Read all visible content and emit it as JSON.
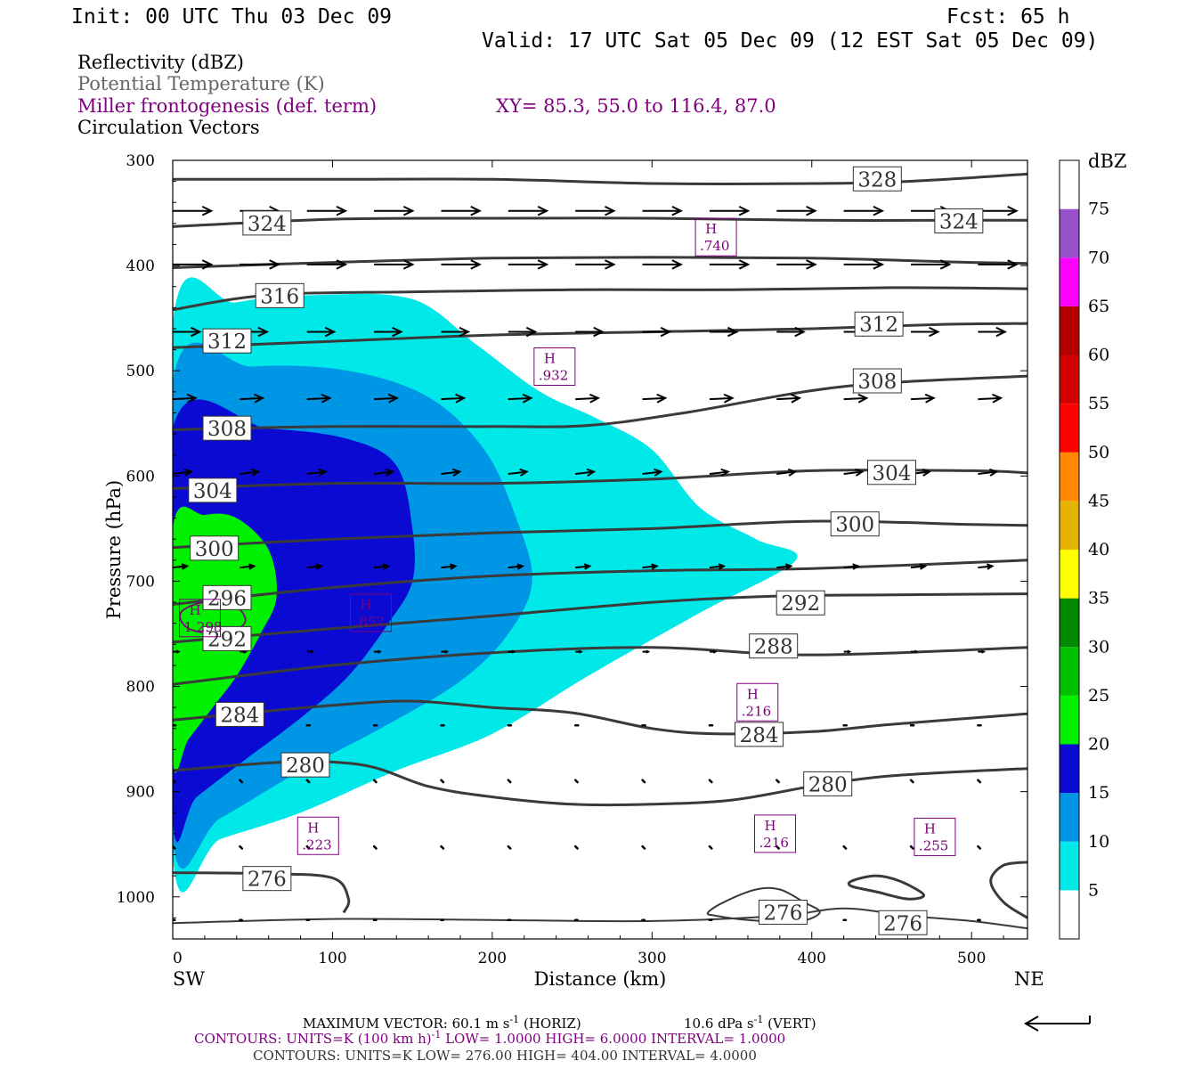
{
  "header": {
    "init": "Init: 00 UTC Thu 03 Dec 09",
    "fcst": "Fcst:   65 h",
    "valid": "Valid: 17 UTC Sat 05 Dec 09 (12 EST Sat 05 Dec 09)",
    "field1": "Reflectivity (dBZ)",
    "field2": "Potential Temperature (K)",
    "field3": "Miller frontogenesis (def. term)",
    "xy": "XY=  85.3, 55.0 to 116.4, 87.0",
    "field4": "Circulation Vectors"
  },
  "colors": {
    "field2": "#666666",
    "field3": "#800080",
    "theta": "#3a3a3a"
  },
  "chart_data": {
    "type": "cross-section",
    "xlabel": "Distance (km)",
    "ylabel": "Pressure (hPa)",
    "xlim": [
      0,
      535
    ],
    "ylim": [
      1040,
      300
    ],
    "x_ticks": [
      0,
      100,
      200,
      300,
      400,
      500
    ],
    "y_ticks": [
      300,
      400,
      500,
      600,
      700,
      800,
      900,
      1000
    ],
    "x_end_labels": {
      "left": "SW",
      "right": "NE"
    },
    "colorbar": {
      "unit": "dBZ",
      "levels": [
        5,
        10,
        15,
        20,
        25,
        30,
        35,
        40,
        45,
        50,
        55,
        60,
        65,
        70,
        75
      ],
      "colors": [
        "#ffffff",
        "#00e8e8",
        "#0096e6",
        "#0a0ad2",
        "#00f000",
        "#00c000",
        "#008800",
        "#ffff00",
        "#e6b400",
        "#ff8800",
        "#ff0000",
        "#d20000",
        "#b40000",
        "#ff00ff",
        "#9650c8",
        "#ffffff"
      ]
    },
    "reflectivity_polygons": [
      {
        "dbz": 5,
        "points": [
          [
            0,
            455
          ],
          [
            40,
            435
          ],
          [
            90,
            428
          ],
          [
            150,
            432
          ],
          [
            190,
            475
          ],
          [
            230,
            520
          ],
          [
            265,
            545
          ],
          [
            300,
            575
          ],
          [
            330,
            630
          ],
          [
            365,
            660
          ],
          [
            390,
            680
          ],
          [
            330,
            730
          ],
          [
            260,
            790
          ],
          [
            200,
            845
          ],
          [
            140,
            880
          ],
          [
            80,
            920
          ],
          [
            30,
            945
          ],
          [
            0,
            962
          ]
        ]
      },
      {
        "dbz": 10,
        "points": [
          [
            0,
            510
          ],
          [
            50,
            496
          ],
          [
            110,
            500
          ],
          [
            160,
            525
          ],
          [
            195,
            575
          ],
          [
            215,
            640
          ],
          [
            225,
            700
          ],
          [
            210,
            750
          ],
          [
            180,
            795
          ],
          [
            130,
            840
          ],
          [
            80,
            880
          ],
          [
            30,
            925
          ],
          [
            0,
            945
          ]
        ]
      },
      {
        "dbz": 15,
        "points": [
          [
            0,
            555
          ],
          [
            60,
            555
          ],
          [
            110,
            565
          ],
          [
            140,
            590
          ],
          [
            150,
            650
          ],
          [
            150,
            700
          ],
          [
            135,
            740
          ],
          [
            110,
            790
          ],
          [
            80,
            830
          ],
          [
            45,
            870
          ],
          [
            15,
            905
          ],
          [
            0,
            925
          ]
        ]
      },
      {
        "dbz": 20,
        "points": [
          [
            0,
            650
          ],
          [
            20,
            637
          ],
          [
            40,
            640
          ],
          [
            60,
            670
          ],
          [
            65,
            715
          ],
          [
            55,
            750
          ],
          [
            40,
            790
          ],
          [
            25,
            820
          ],
          [
            10,
            850
          ],
          [
            0,
            870
          ]
        ]
      }
    ],
    "theta_contours": [
      {
        "theta": 328,
        "points": [
          [
            0,
            318
          ],
          [
            100,
            318
          ],
          [
            200,
            318
          ],
          [
            300,
            322
          ],
          [
            400,
            322
          ],
          [
            460,
            320
          ],
          [
            535,
            313
          ]
        ]
      },
      {
        "theta": 324,
        "points": [
          [
            0,
            363
          ],
          [
            100,
            356
          ],
          [
            200,
            355
          ],
          [
            300,
            355
          ],
          [
            400,
            357
          ],
          [
            500,
            357
          ],
          [
            535,
            357
          ]
        ]
      },
      {
        "theta": 320,
        "points": [
          [
            0,
            402
          ],
          [
            100,
            397
          ],
          [
            200,
            393
          ],
          [
            300,
            392
          ],
          [
            400,
            393
          ],
          [
            500,
            397
          ],
          [
            535,
            398
          ]
        ]
      },
      {
        "theta": 316,
        "points": [
          [
            0,
            442
          ],
          [
            60,
            428
          ],
          [
            150,
            425
          ],
          [
            250,
            423
          ],
          [
            350,
            423
          ],
          [
            450,
            421
          ],
          [
            535,
            422
          ]
        ]
      },
      {
        "theta": 312,
        "points": [
          [
            0,
            478
          ],
          [
            100,
            472
          ],
          [
            200,
            466
          ],
          [
            300,
            463
          ],
          [
            400,
            460
          ],
          [
            480,
            456
          ],
          [
            535,
            455
          ]
        ]
      },
      {
        "theta": 308,
        "points": [
          [
            0,
            556
          ],
          [
            100,
            553
          ],
          [
            200,
            553
          ],
          [
            260,
            552
          ],
          [
            320,
            540
          ],
          [
            420,
            515
          ],
          [
            535,
            505
          ]
        ]
      },
      {
        "theta": 304,
        "points": [
          [
            0,
            612
          ],
          [
            100,
            607
          ],
          [
            200,
            607
          ],
          [
            300,
            603
          ],
          [
            400,
            595
          ],
          [
            500,
            595
          ],
          [
            535,
            597
          ]
        ]
      },
      {
        "theta": 300,
        "points": [
          [
            0,
            668
          ],
          [
            100,
            660
          ],
          [
            200,
            654
          ],
          [
            300,
            650
          ],
          [
            400,
            643
          ],
          [
            500,
            646
          ],
          [
            535,
            647
          ]
        ]
      },
      {
        "theta": 296,
        "points": [
          [
            0,
            722
          ],
          [
            100,
            706
          ],
          [
            200,
            695
          ],
          [
            300,
            690
          ],
          [
            400,
            688
          ],
          [
            535,
            680
          ]
        ]
      },
      {
        "theta": 292,
        "points": [
          [
            0,
            758
          ],
          [
            100,
            745
          ],
          [
            200,
            733
          ],
          [
            300,
            720
          ],
          [
            380,
            714
          ],
          [
            450,
            713
          ],
          [
            535,
            712
          ]
        ]
      },
      {
        "theta": 288,
        "points": [
          [
            0,
            798
          ],
          [
            100,
            780
          ],
          [
            200,
            768
          ],
          [
            300,
            763
          ],
          [
            400,
            770
          ],
          [
            535,
            763
          ]
        ]
      },
      {
        "theta": 284,
        "points": [
          [
            0,
            832
          ],
          [
            100,
            818
          ],
          [
            150,
            814
          ],
          [
            200,
            820
          ],
          [
            250,
            825
          ],
          [
            300,
            840
          ],
          [
            340,
            845
          ],
          [
            400,
            843
          ],
          [
            450,
            836
          ],
          [
            535,
            826
          ]
        ]
      },
      {
        "theta": 280,
        "points": [
          [
            0,
            880
          ],
          [
            70,
            872
          ],
          [
            120,
            875
          ],
          [
            160,
            895
          ],
          [
            200,
            905
          ],
          [
            250,
            912
          ],
          [
            300,
            912
          ],
          [
            350,
            908
          ],
          [
            400,
            895
          ],
          [
            450,
            885
          ],
          [
            535,
            878
          ]
        ]
      },
      {
        "theta": 276,
        "points": [
          [
            0,
            977
          ],
          [
            60,
            978
          ],
          [
            100,
            982
          ],
          [
            110,
            1002
          ],
          [
            107,
            1015
          ]
        ]
      },
      {
        "theta": 276,
        "points": [
          [
            335,
            1015
          ],
          [
            345,
            1005
          ],
          [
            365,
            993
          ],
          [
            380,
            993
          ],
          [
            395,
            1005
          ],
          [
            405,
            1015
          ],
          [
            390,
            1024
          ],
          [
            360,
            1022
          ],
          [
            340,
            1018
          ]
        ]
      },
      {
        "theta": 276,
        "points": [
          [
            425,
            985
          ],
          [
            440,
            980
          ],
          [
            455,
            985
          ],
          [
            470,
            998
          ],
          [
            460,
            1002
          ],
          [
            440,
            995
          ],
          [
            425,
            990
          ]
        ]
      },
      {
        "theta": 276,
        "points": [
          [
            0,
            1025
          ],
          [
            100,
            1021
          ],
          [
            200,
            1022
          ],
          [
            300,
            1023
          ],
          [
            380,
            1018
          ],
          [
            420,
            1011
          ],
          [
            460,
            1018
          ],
          [
            500,
            1023
          ],
          [
            535,
            1030
          ]
        ]
      },
      {
        "theta": 276,
        "points": [
          [
            535,
            967
          ],
          [
            520,
            970
          ],
          [
            512,
            985
          ],
          [
            520,
            1005
          ],
          [
            535,
            1020
          ]
        ]
      }
    ],
    "theta_labels": [
      {
        "text": "328",
        "x": 441,
        "p": 318
      },
      {
        "text": "324",
        "x": 59,
        "p": 360
      },
      {
        "text": "324",
        "x": 492,
        "p": 358
      },
      {
        "text": "316",
        "x": 67,
        "p": 429
      },
      {
        "text": "312",
        "x": 34,
        "p": 472
      },
      {
        "text": "312",
        "x": 442,
        "p": 456
      },
      {
        "text": "308",
        "x": 441,
        "p": 510
      },
      {
        "text": "308",
        "x": 34,
        "p": 555
      },
      {
        "text": "304",
        "x": 25,
        "p": 614
      },
      {
        "text": "304",
        "x": 450,
        "p": 597
      },
      {
        "text": "300",
        "x": 26,
        "p": 669
      },
      {
        "text": "300",
        "x": 427,
        "p": 646
      },
      {
        "text": "296",
        "x": 34,
        "p": 716
      },
      {
        "text": "292",
        "x": 393,
        "p": 721
      },
      {
        "text": "292",
        "x": 34,
        "p": 755
      },
      {
        "text": "288",
        "x": 376,
        "p": 762
      },
      {
        "text": "284",
        "x": 42,
        "p": 827
      },
      {
        "text": "284",
        "x": 367,
        "p": 846
      },
      {
        "text": "280",
        "x": 83,
        "p": 875
      },
      {
        "text": "280",
        "x": 410,
        "p": 893
      },
      {
        "text": "276",
        "x": 59,
        "p": 983
      },
      {
        "text": "276",
        "x": 382,
        "p": 1015
      },
      {
        "text": "276",
        "x": 457,
        "p": 1025
      }
    ],
    "frontogenesis_maxima": [
      {
        "label": "H",
        "value": ".740",
        "x": 340,
        "p": 373
      },
      {
        "label": "H",
        "value": ".932",
        "x": 239,
        "p": 496
      },
      {
        "label": "H",
        "value": "1.298",
        "x": 17,
        "p": 735
      },
      {
        "label": "H",
        "value": ".852",
        "x": 124,
        "p": 730
      },
      {
        "label": "H",
        "value": ".216",
        "x": 366,
        "p": 815
      },
      {
        "label": "H",
        "value": ".223",
        "x": 91,
        "p": 942
      },
      {
        "label": "H",
        "value": ".216",
        "x": 377,
        "p": 940
      },
      {
        "label": "H",
        "value": ".255",
        "x": 477,
        "p": 943
      }
    ],
    "frontogenesis_contours": [
      {
        "points": [
          [
            5,
            730
          ],
          [
            20,
            720
          ],
          [
            40,
            725
          ],
          [
            45,
            740
          ],
          [
            30,
            750
          ],
          [
            10,
            745
          ]
        ]
      }
    ],
    "vector_rows": [
      {
        "p": 348,
        "u": 27,
        "w": 0
      },
      {
        "p": 399,
        "u": 27,
        "w": 0
      },
      {
        "p": 463,
        "u": 19,
        "w": 0
      },
      {
        "p": 527,
        "u": 16,
        "w": -0.8
      },
      {
        "p": 598,
        "u": 13,
        "w": -1.5
      },
      {
        "p": 687,
        "u": 10,
        "w": -1
      },
      {
        "p": 767,
        "u": 4,
        "w": 0
      },
      {
        "p": 837,
        "u": 1,
        "w": 0
      },
      {
        "p": 889,
        "u": 0.6,
        "w": 1.5
      },
      {
        "p": 952,
        "u": 0.6,
        "w": 1.5
      },
      {
        "p": 1022,
        "u": 0.5,
        "w": 0
      }
    ],
    "vector_x": [
      0,
      42,
      84,
      126,
      168,
      210,
      252,
      294,
      336,
      378,
      420,
      462,
      504
    ]
  },
  "footer": {
    "line1a": "MAXIMUM VECTOR:  60.1 m s",
    "line1b": "-1",
    "line1c": " (HORIZ)",
    "line1d": "10.6 dPa s",
    "line1e": "-1",
    "line1f": " (VERT)",
    "line2a": "CONTOURS:  UNITS=K (100 km h)",
    "line2b": "-1",
    "line2c": "  LOW=   1.0000       HIGH=  6.0000       INTERVAL=    1.0000",
    "line3": "CONTOURS:  UNITS=K   LOW=   276.00       HIGH=   404.00       INTERVAL=    4.0000"
  }
}
